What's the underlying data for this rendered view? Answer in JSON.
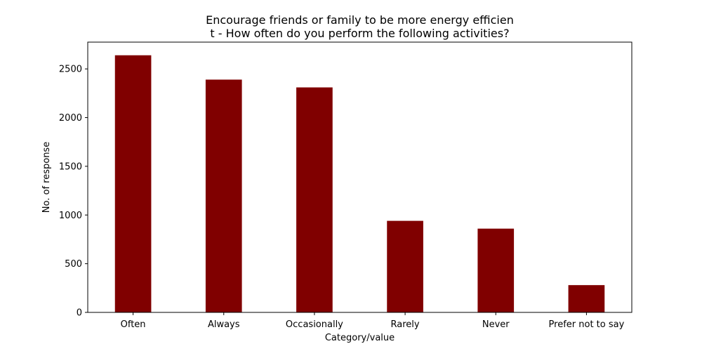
{
  "chart_data": {
    "type": "bar",
    "title_lines": [
      "Encourage friends or family to be more energy efficien",
      "t - How often do you perform the following activities?"
    ],
    "xlabel": "Category/value",
    "ylabel": "No. of response",
    "categories": [
      "Often",
      "Always",
      "Occasionally",
      "Rarely",
      "Never",
      "Prefer not to say"
    ],
    "values": [
      2640,
      2390,
      2310,
      940,
      860,
      280
    ],
    "ylim": [
      0,
      2775
    ],
    "yticks": [
      0,
      500,
      1000,
      1500,
      2000,
      2500
    ],
    "bar_color": "#800000",
    "grid": false
  }
}
